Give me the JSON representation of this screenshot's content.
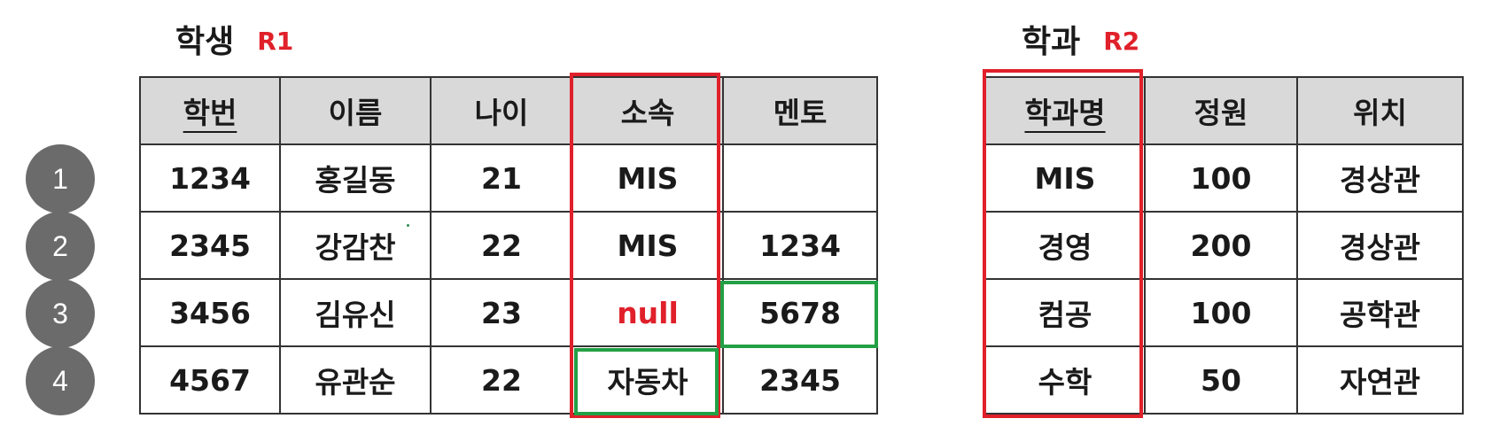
{
  "r1": {
    "title": "학생",
    "tag": "R1",
    "headers": [
      "학번",
      "이름",
      "나이",
      "소속",
      "멘토"
    ],
    "rows": [
      [
        "1234",
        "홍길동",
        "21",
        "MIS",
        ""
      ],
      [
        "2345",
        "강감찬",
        "22",
        "MIS",
        "1234"
      ],
      [
        "3456",
        "김유신",
        "23",
        "null",
        "5678"
      ],
      [
        "4567",
        "유관순",
        "22",
        "자동차",
        "2345"
      ]
    ]
  },
  "r2": {
    "title": "학과",
    "tag": "R2",
    "headers": [
      "학과명",
      "정원",
      "위치"
    ],
    "rows": [
      [
        "MIS",
        "100",
        "경상관"
      ],
      [
        "경영",
        "200",
        "경상관"
      ],
      [
        "컴공",
        "100",
        "공학관"
      ],
      [
        "수학",
        "50",
        "자연관"
      ]
    ]
  },
  "row_markers": [
    "1",
    "2",
    "3",
    "4"
  ],
  "colors": {
    "header_bg": "#d9d9d9",
    "highlight_red": "#e0202a",
    "highlight_green": "#22a045",
    "marker": "#6b6b6b"
  }
}
